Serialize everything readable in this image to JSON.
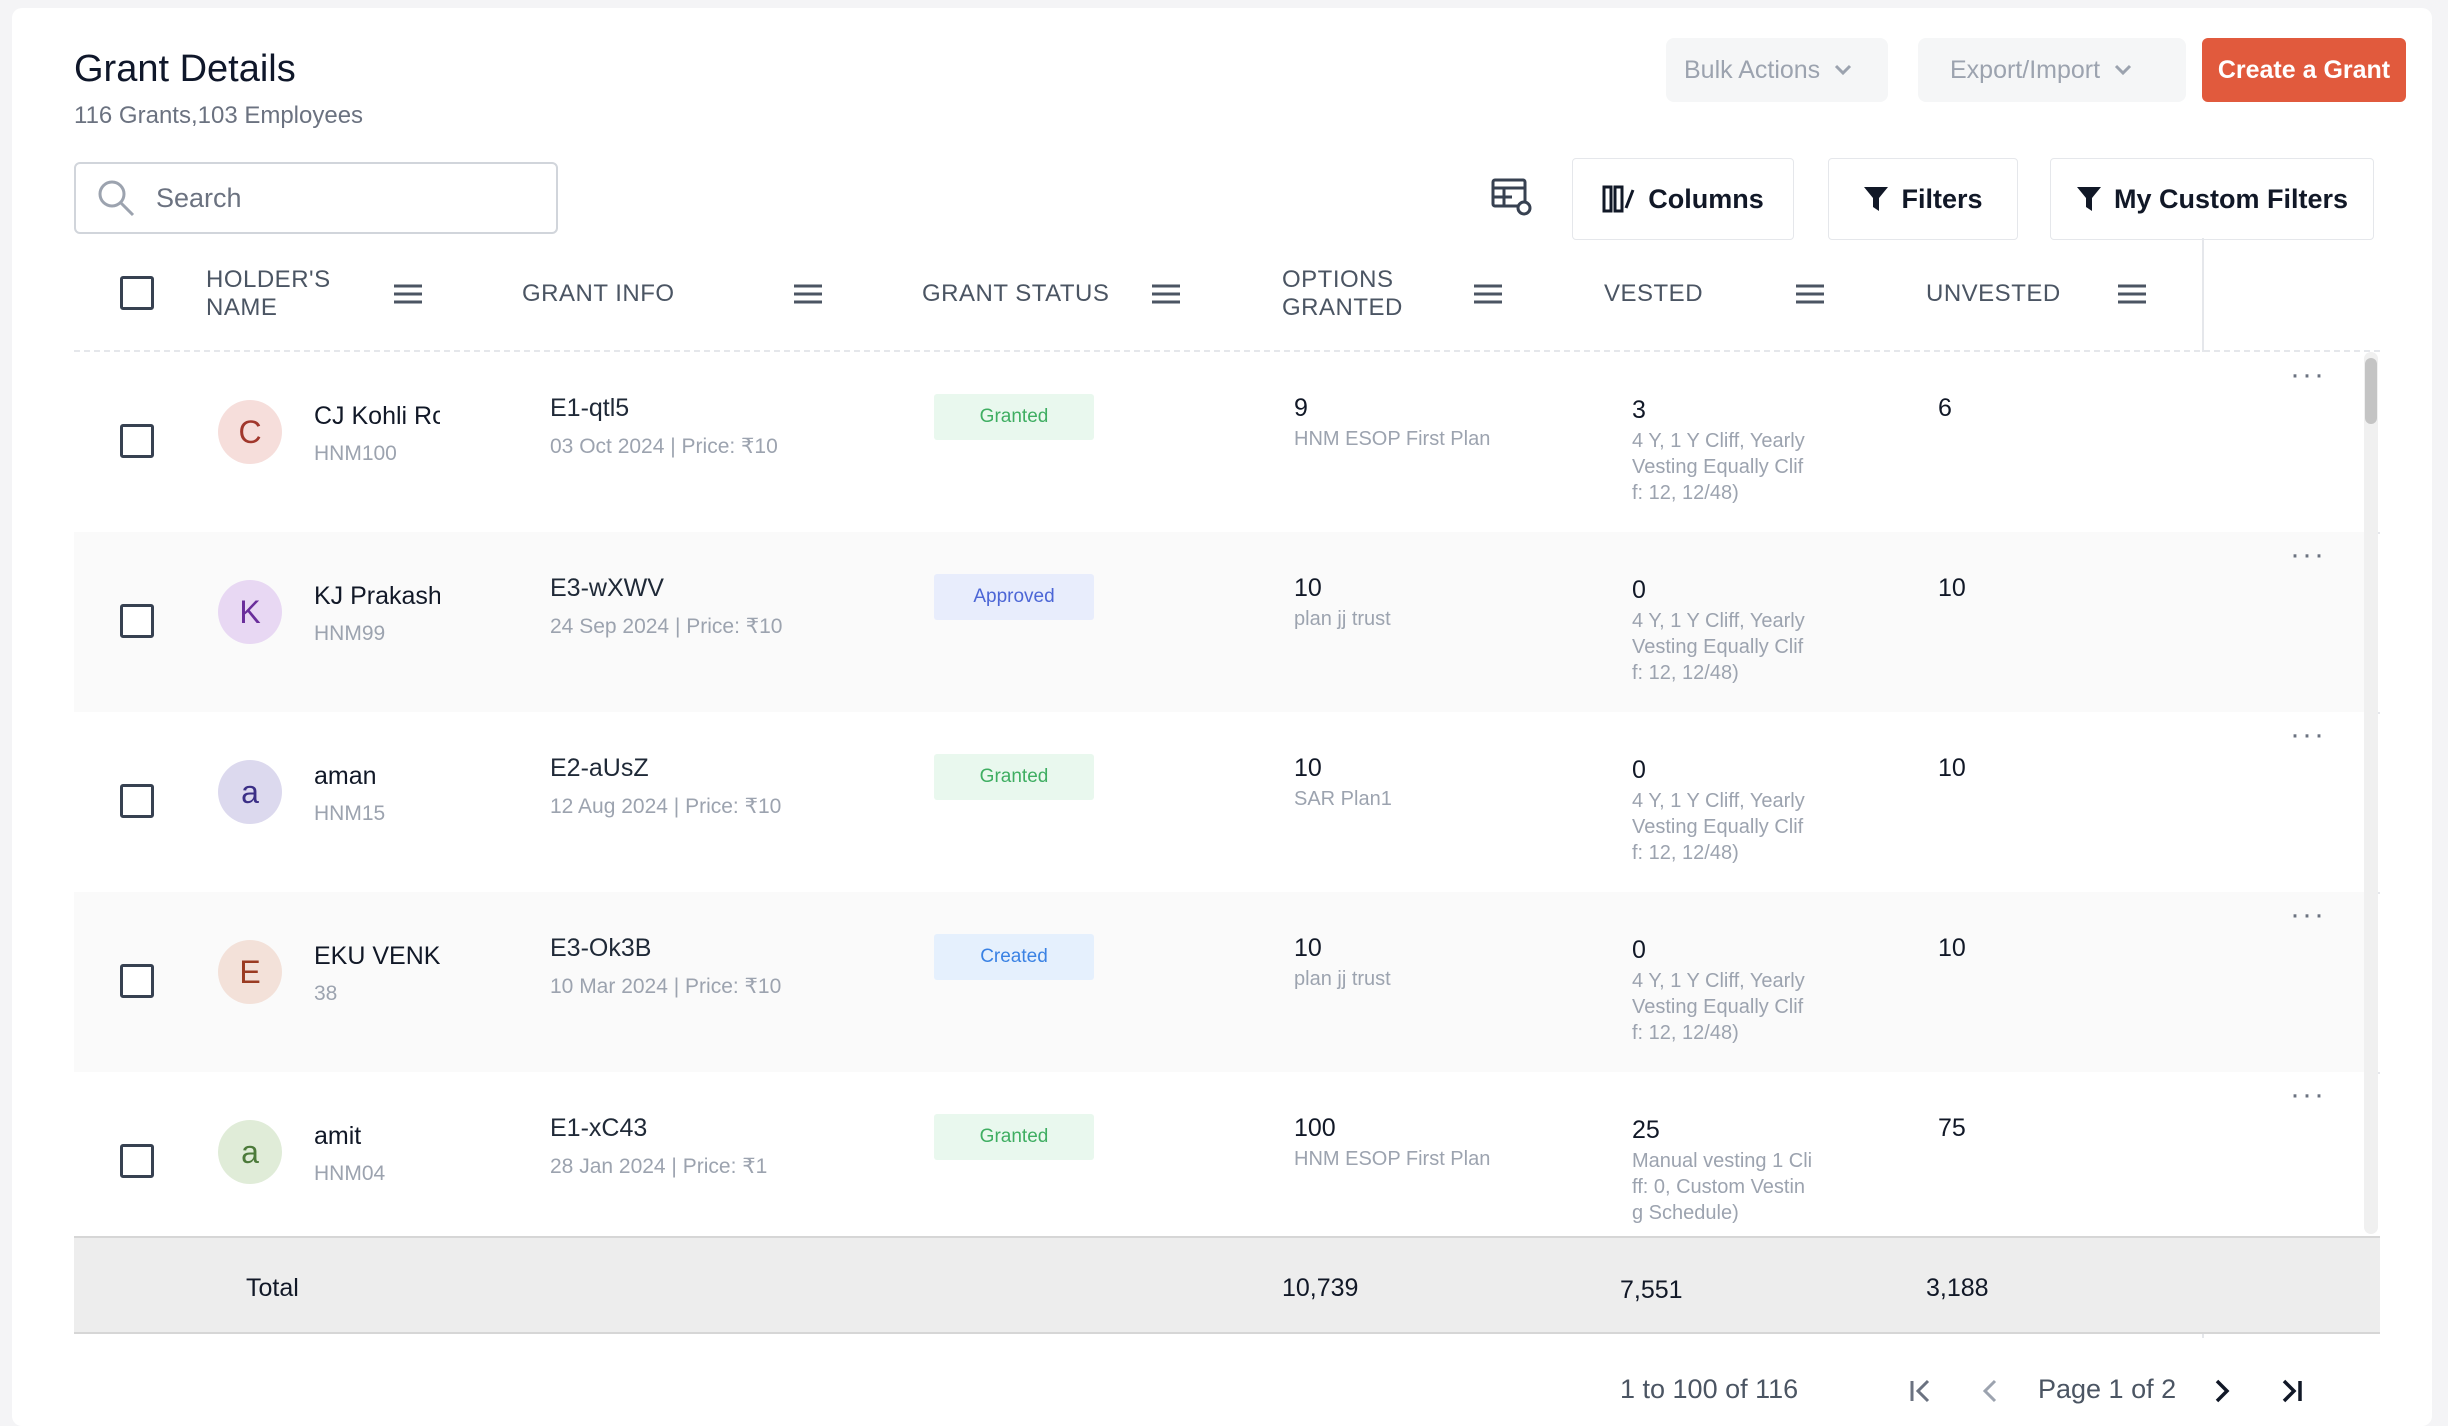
{
  "header": {
    "title": "Grant Details",
    "subtitle": "116 Grants,103 Employees",
    "bulk_actions": "Bulk Actions",
    "export_import": "Export/Import",
    "create_grant": "Create a Grant"
  },
  "toolbar": {
    "search_placeholder": "Search",
    "columns": "Columns",
    "filters": "Filters",
    "custom_filters": "My Custom Filters"
  },
  "table": {
    "columns": {
      "holder_line1": "HOLDER'S",
      "holder_line2": "NAME",
      "grant_info": "GRANT INFO",
      "grant_status": "GRANT STATUS",
      "options_line1": "OPTIONS",
      "options_line2": "GRANTED",
      "vested": "VESTED",
      "unvested": "UNVESTED"
    },
    "rows": [
      {
        "initial": "C",
        "name": "CJ Kohli Rc",
        "code": "HNM100",
        "grant_id": "E1-qtl5",
        "grant_date": "03 Oct 2024 | Price: ₹10",
        "status": "Granted",
        "options": "9",
        "plan": "HNM ESOP First Plan",
        "vested": "3",
        "vest_l1": "4 Y, 1 Y Cliff, Yearly",
        "vest_l2": "Vesting Equally Clif",
        "vest_l3": "f: 12, 12/48)",
        "unvested": "6"
      },
      {
        "initial": "K",
        "name": "KJ Prakash",
        "code": "HNM99",
        "grant_id": "E3-wXWV",
        "grant_date": "24 Sep 2024 | Price: ₹10",
        "status": "Approved",
        "options": "10",
        "plan": "plan jj trust",
        "vested": "0",
        "vest_l1": "4 Y, 1 Y Cliff, Yearly",
        "vest_l2": "Vesting Equally Clif",
        "vest_l3": "f: 12, 12/48)",
        "unvested": "10"
      },
      {
        "initial": "a",
        "name": "aman",
        "code": "HNM15",
        "grant_id": "E2-aUsZ",
        "grant_date": "12 Aug 2024 | Price: ₹10",
        "status": "Granted",
        "options": "10",
        "plan": "SAR Plan1",
        "vested": "0",
        "vest_l1": "4 Y, 1 Y Cliff, Yearly",
        "vest_l2": "Vesting Equally Clif",
        "vest_l3": "f: 12, 12/48)",
        "unvested": "10"
      },
      {
        "initial": "E",
        "name": "EKU VENKA",
        "code": "38",
        "grant_id": "E3-Ok3B",
        "grant_date": "10 Mar 2024 | Price: ₹10",
        "status": "Created",
        "options": "10",
        "plan": "plan jj trust",
        "vested": "0",
        "vest_l1": "4 Y, 1 Y Cliff, Yearly",
        "vest_l2": "Vesting Equally Clif",
        "vest_l3": "f: 12, 12/48)",
        "unvested": "10"
      },
      {
        "initial": "a",
        "name": "amit",
        "code": "HNM04",
        "grant_id": "E1-xC43",
        "grant_date": "28 Jan 2024 | Price: ₹1",
        "status": "Granted",
        "options": "100",
        "plan": "HNM ESOP First Plan",
        "vested": "25",
        "vest_l1": "Manual vesting 1 Cli",
        "vest_l2": "ff: 0, Custom Vestin",
        "vest_l3": "g Schedule)",
        "unvested": "75"
      }
    ],
    "total": {
      "label": "Total",
      "options": "10,739",
      "vested": "7,551",
      "unvested": "3,188"
    }
  },
  "pagination": {
    "range": "1 to 100 of 116",
    "page": "Page 1 of 2"
  },
  "colors": {
    "primary": "#e15a3d",
    "granted_bg": "#e9f8ee",
    "granted_fg": "#3fae62",
    "approved_bg": "#e8edfc",
    "approved_fg": "#4c66d6",
    "created_bg": "#e5f0fd",
    "created_fg": "#3a82e4"
  }
}
